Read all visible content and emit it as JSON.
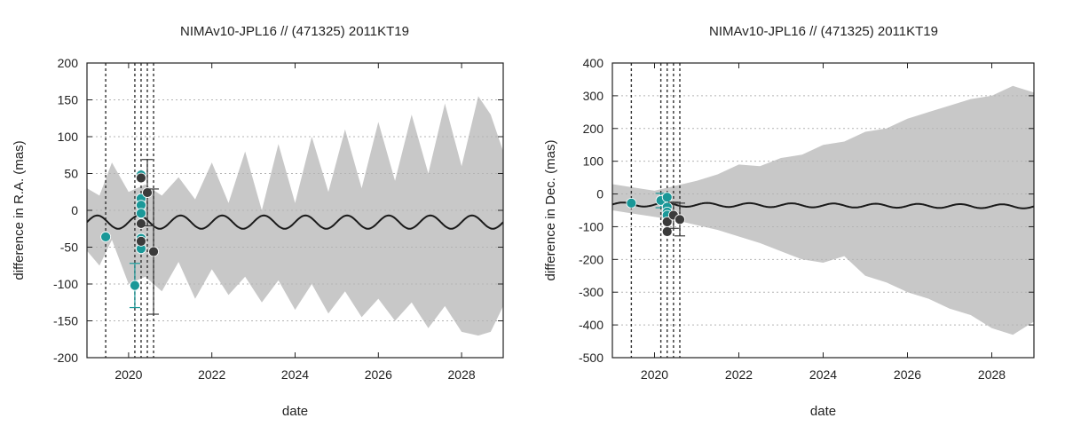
{
  "colors": {
    "band": "#c8c8c8",
    "model_line": "#1a1a1a",
    "teal": "#1a9898",
    "dark": "#3b3b3b",
    "grid": "#b4b4b4"
  },
  "chart_data": [
    {
      "type": "scatter",
      "title": "NIMAv10-JPL16 // (471325) 2011KT19",
      "xlabel": "date",
      "ylabel": "difference in R.A. (mas)",
      "xlim": [
        2019.0,
        2029.0
      ],
      "ylim": [
        -200,
        200
      ],
      "xticks": [
        2020,
        2022,
        2024,
        2026,
        2028
      ],
      "yticks": [
        -200,
        -150,
        -100,
        -50,
        0,
        50,
        100,
        150,
        200
      ],
      "grid": "dotted",
      "observation_dates": [
        2019.45,
        2020.15,
        2020.3,
        2020.45,
        2020.6
      ],
      "model_line": {
        "x": [
          2019.0,
          2020.0,
          2021.0,
          2022.0,
          2023.0,
          2024.0,
          2025.0,
          2026.0,
          2027.0,
          2028.0,
          2029.0
        ],
        "mean": -16,
        "amplitude": 9,
        "period_years": 1.0
      },
      "uncertainty_band": {
        "x": [
          2019.0,
          2019.3,
          2019.6,
          2020.0,
          2020.4,
          2020.8,
          2021.2,
          2021.6,
          2022.0,
          2022.4,
          2022.8,
          2023.2,
          2023.6,
          2024.0,
          2024.4,
          2024.8,
          2025.2,
          2025.6,
          2026.0,
          2026.4,
          2026.8,
          2027.2,
          2027.6,
          2028.0,
          2028.4,
          2028.7,
          2029.0
        ],
        "upper": [
          30,
          20,
          65,
          25,
          35,
          20,
          45,
          15,
          65,
          10,
          80,
          0,
          90,
          10,
          100,
          25,
          110,
          30,
          120,
          40,
          130,
          50,
          145,
          60,
          155,
          130,
          80
        ],
        "lower": [
          -55,
          -75,
          -40,
          -100,
          -90,
          -110,
          -70,
          -120,
          -80,
          -115,
          -90,
          -125,
          -95,
          -135,
          -100,
          -140,
          -110,
          -145,
          -120,
          -150,
          -125,
          -160,
          -130,
          -165,
          -170,
          -165,
          -130
        ]
      },
      "series": [
        {
          "name": "",
          "color": "teal",
          "points": [
            {
              "x": 2019.45,
              "y": -36
            },
            {
              "x": 2020.15,
              "y": -102,
              "err": 30
            },
            {
              "x": 2020.3,
              "y": 48
            },
            {
              "x": 2020.3,
              "y": 16
            },
            {
              "x": 2020.3,
              "y": 7
            },
            {
              "x": 2020.3,
              "y": -4
            },
            {
              "x": 2020.3,
              "y": -38
            },
            {
              "x": 2020.3,
              "y": -52
            }
          ]
        },
        {
          "name": "",
          "color": "dark",
          "points": [
            {
              "x": 2020.3,
              "y": 44
            },
            {
              "x": 2020.3,
              "y": -18
            },
            {
              "x": 2020.3,
              "y": -42
            },
            {
              "x": 2020.45,
              "y": 24,
              "err": 45
            },
            {
              "x": 2020.6,
              "y": -56,
              "err": 85
            }
          ]
        }
      ]
    },
    {
      "type": "scatter",
      "title": "NIMAv10-JPL16 // (471325) 2011KT19",
      "xlabel": "date",
      "ylabel": "difference in Dec. (mas)",
      "xlim": [
        2019.0,
        2029.0
      ],
      "ylim": [
        -500,
        400
      ],
      "xticks": [
        2020,
        2022,
        2024,
        2026,
        2028
      ],
      "yticks": [
        -500,
        -400,
        -300,
        -200,
        -100,
        0,
        100,
        200,
        300,
        400
      ],
      "grid": "dotted",
      "observation_dates": [
        2019.45,
        2020.15,
        2020.3,
        2020.45,
        2020.6
      ],
      "model_line": {
        "x": [
          2019.0,
          2020.0,
          2021.0,
          2022.0,
          2023.0,
          2024.0,
          2025.0,
          2026.0,
          2027.0,
          2028.0,
          2029.0
        ],
        "mean": -32,
        "amplitude": 6,
        "period_years": 1.0,
        "trend_per_year": -0.6
      },
      "uncertainty_band": {
        "x": [
          2019.0,
          2019.5,
          2020.0,
          2020.5,
          2021.0,
          2021.5,
          2022.0,
          2022.5,
          2023.0,
          2023.5,
          2024.0,
          2024.5,
          2025.0,
          2025.5,
          2026.0,
          2026.5,
          2027.0,
          2027.5,
          2028.0,
          2028.5,
          2029.0
        ],
        "upper": [
          30,
          20,
          10,
          25,
          40,
          60,
          90,
          85,
          110,
          120,
          150,
          160,
          190,
          200,
          230,
          250,
          270,
          290,
          300,
          330,
          310
        ],
        "lower": [
          -50,
          -60,
          -70,
          -80,
          -95,
          -110,
          -130,
          -150,
          -175,
          -200,
          -210,
          -190,
          -250,
          -270,
          -300,
          -320,
          -350,
          -370,
          -410,
          -430,
          -390
        ]
      },
      "series": [
        {
          "name": "",
          "color": "teal",
          "points": [
            {
              "x": 2019.45,
              "y": -28
            },
            {
              "x": 2020.15,
              "y": -20,
              "err": 22
            },
            {
              "x": 2020.3,
              "y": -10
            },
            {
              "x": 2020.3,
              "y": -40
            },
            {
              "x": 2020.3,
              "y": -55
            },
            {
              "x": 2020.3,
              "y": -65
            }
          ]
        },
        {
          "name": "",
          "color": "dark",
          "points": [
            {
              "x": 2020.3,
              "y": -85
            },
            {
              "x": 2020.3,
              "y": -115
            },
            {
              "x": 2020.45,
              "y": -65,
              "err": 40
            },
            {
              "x": 2020.6,
              "y": -78,
              "err": 50
            }
          ]
        }
      ]
    }
  ]
}
